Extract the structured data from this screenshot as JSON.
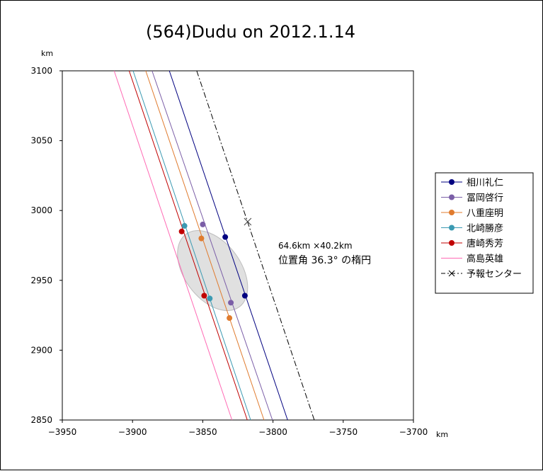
{
  "chart_data": {
    "type": "scatter",
    "title": "(564)Dudu on 2012.1.14",
    "x_unit": "km",
    "y_unit": "km",
    "xlim": [
      -3950,
      -3700
    ],
    "ylim": [
      2850,
      3100
    ],
    "x_ticks": [
      -3950,
      -3900,
      -3850,
      -3800,
      -3750,
      -3700
    ],
    "y_ticks": [
      2850,
      2900,
      2950,
      3000,
      3050,
      3100
    ],
    "x_tick_labels": [
      "−3950",
      "−3900",
      "−3850",
      "−3800",
      "−3750",
      "−3700"
    ],
    "y_tick_labels": [
      "2850",
      "2900",
      "2950",
      "3000",
      "3050",
      "3100"
    ],
    "grid": false,
    "legend_position": "right",
    "annotation": {
      "line1": "64.6km ×40.2km",
      "line2": "位置角 36.3° の楕円"
    },
    "ellipse": {
      "center": [
        -3843,
        2957
      ],
      "major_axis_km": 64.6,
      "minor_axis_km": 40.2,
      "position_angle_deg": 36.3,
      "fill": "#e0e0e0"
    },
    "series": [
      {
        "name": "相川礼仁",
        "color": "#000080",
        "line": [
          [
            -3873.8,
            3100
          ],
          [
            -3789.6,
            2850
          ]
        ],
        "points": [
          [
            -3834,
            2981
          ],
          [
            -3820,
            2939
          ]
        ]
      },
      {
        "name": "冨岡啓行",
        "color": "#7b5ea7",
        "line": [
          [
            -3886.1,
            3100
          ],
          [
            -3800.4,
            2850
          ]
        ],
        "points": [
          [
            -3850,
            2990
          ],
          [
            -3830,
            2934
          ]
        ]
      },
      {
        "name": "八重座明",
        "color": "#e07b2e",
        "line": [
          [
            -3890.6,
            3100
          ],
          [
            -3806.4,
            2850
          ]
        ],
        "points": [
          [
            -3851,
            2980
          ],
          [
            -3831,
            2923
          ]
        ]
      },
      {
        "name": "北崎勝彦",
        "color": "#3b9ab2",
        "line": [
          [
            -3899.6,
            3100
          ],
          [
            -3815.9,
            2850
          ]
        ],
        "points": [
          [
            -3863,
            2989
          ],
          [
            -3845,
            2937
          ]
        ]
      },
      {
        "name": "唐崎秀芳",
        "color": "#c00000",
        "line": [
          [
            -3902.4,
            3100
          ],
          [
            -3818.3,
            2850
          ]
        ],
        "points": [
          [
            -3865,
            2985
          ],
          [
            -3849,
            2939
          ]
        ]
      },
      {
        "name": "高島英雄",
        "color": "#ff69b4",
        "line": [
          [
            -3913.1,
            3100
          ],
          [
            -3829.2,
            2850
          ]
        ],
        "points": []
      },
      {
        "name": "予報センター",
        "color": "#000000",
        "dashed": true,
        "line": [
          [
            -3854.3,
            3100
          ],
          [
            -3770.6,
            2850
          ]
        ],
        "points": [
          [
            -3818,
            2992
          ]
        ]
      }
    ]
  }
}
